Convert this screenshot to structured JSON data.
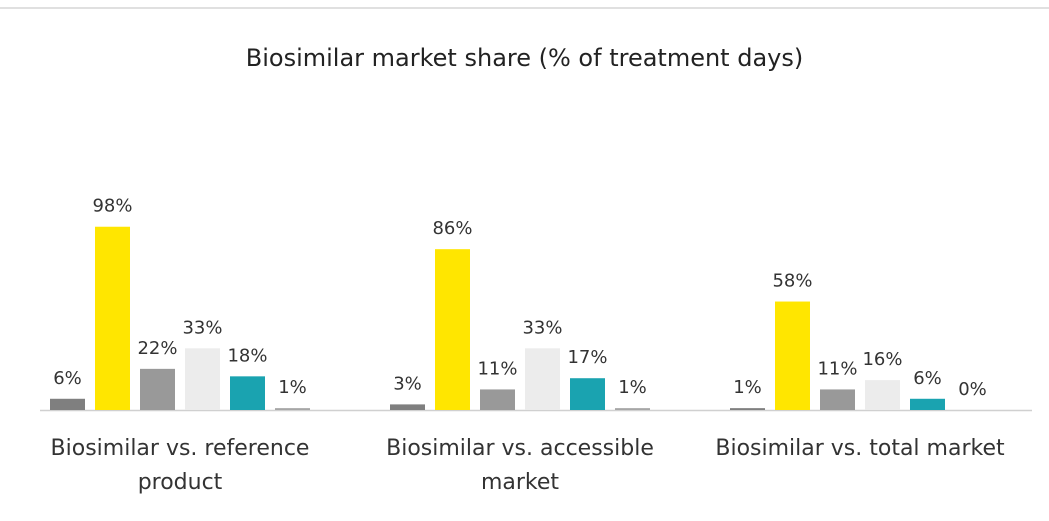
{
  "chart_data": {
    "type": "bar",
    "title": "Biosimilar market share (% of treatment days)",
    "categories": [
      "Biosimilar vs. reference product",
      "Biosimilar vs. accessible market",
      "Biosimilar vs. total market"
    ],
    "series": [
      {
        "color": "#7f7f7f",
        "values": [
          6,
          3,
          1
        ],
        "value_labels": [
          "6%",
          "3%",
          "1%"
        ]
      },
      {
        "color": "#ffe600",
        "values": [
          98,
          86,
          58
        ],
        "value_labels": [
          "98%",
          "86%",
          "58%"
        ]
      },
      {
        "color": "#999999",
        "values": [
          22,
          11,
          11
        ],
        "value_labels": [
          "22%",
          "11%",
          "11%"
        ]
      },
      {
        "color": "#ececec",
        "values": [
          33,
          33,
          16
        ],
        "value_labels": [
          "33%",
          "33%",
          "16%"
        ]
      },
      {
        "color": "#1aa3b0",
        "values": [
          18,
          17,
          6
        ],
        "value_labels": [
          "18%",
          "17%",
          "6%"
        ]
      },
      {
        "color": "#a6a6a6",
        "values": [
          1,
          1,
          0
        ],
        "value_labels": [
          "1%",
          "1%",
          "0%"
        ]
      }
    ],
    "ylim": [
      0,
      100
    ]
  }
}
